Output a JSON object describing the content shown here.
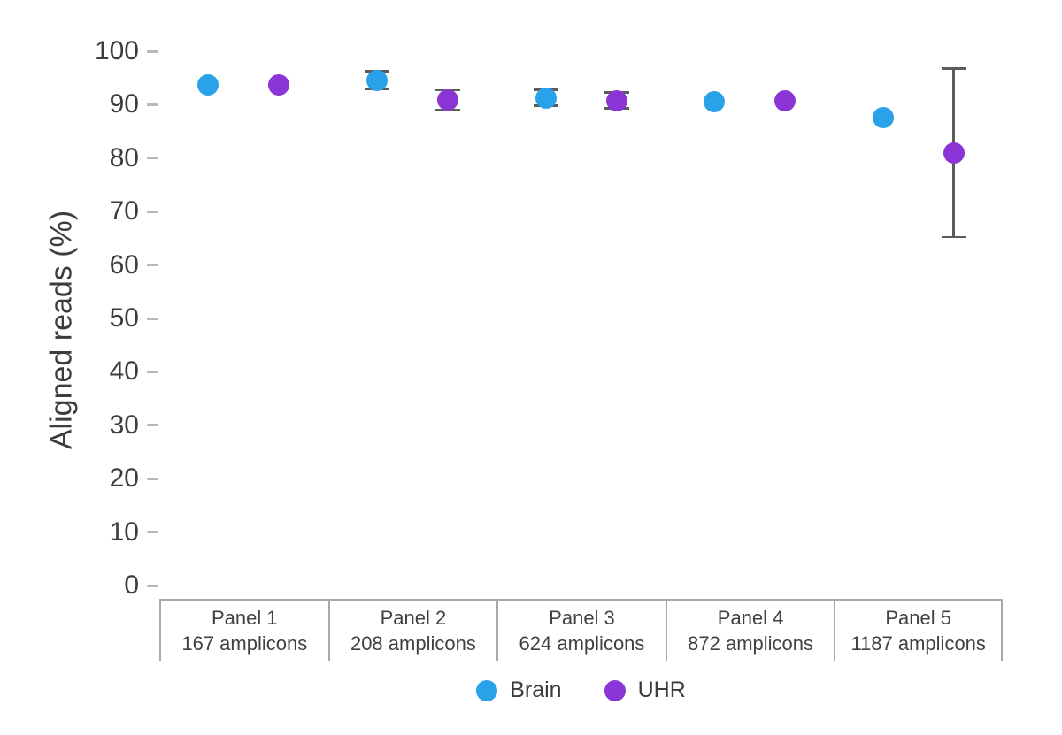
{
  "chart_data": {
    "type": "scatter",
    "title": "",
    "ylabel": "Aligned reads (%)",
    "xlabel": "",
    "ylim": [
      0,
      100
    ],
    "yticks": [
      100,
      90,
      80,
      70,
      60,
      50,
      40,
      30,
      20,
      10,
      0
    ],
    "grid": false,
    "legend_position": "bottom",
    "categories": [
      "Panel 1",
      "Panel 2",
      "Panel 3",
      "Panel 4",
      "Panel 5"
    ],
    "panels": [
      {
        "label": "Panel 1",
        "sublabel": "167 amplicons"
      },
      {
        "label": "Panel 2",
        "sublabel": "208 amplicons"
      },
      {
        "label": "Panel 3",
        "sublabel": "624 amplicons"
      },
      {
        "label": "Panel 4",
        "sublabel": "872 amplicons"
      },
      {
        "label": "Panel 5",
        "sublabel": "1187 amplicons"
      }
    ],
    "series": [
      {
        "name": "Brain",
        "color": "#29a2e9",
        "values": [
          93.7,
          94.6,
          91.3,
          90.5,
          87.6
        ],
        "errors": [
          null,
          1.7,
          1.5,
          null,
          null
        ]
      },
      {
        "name": "UHR",
        "color": "#8b35d6",
        "values": [
          93.7,
          90.9,
          90.8,
          90.8,
          81.0
        ],
        "errors": [
          null,
          1.8,
          1.5,
          null,
          15.8
        ]
      }
    ],
    "error_bar_color": "#5b5b5b",
    "axis_text_color": "#3c3c3c"
  }
}
